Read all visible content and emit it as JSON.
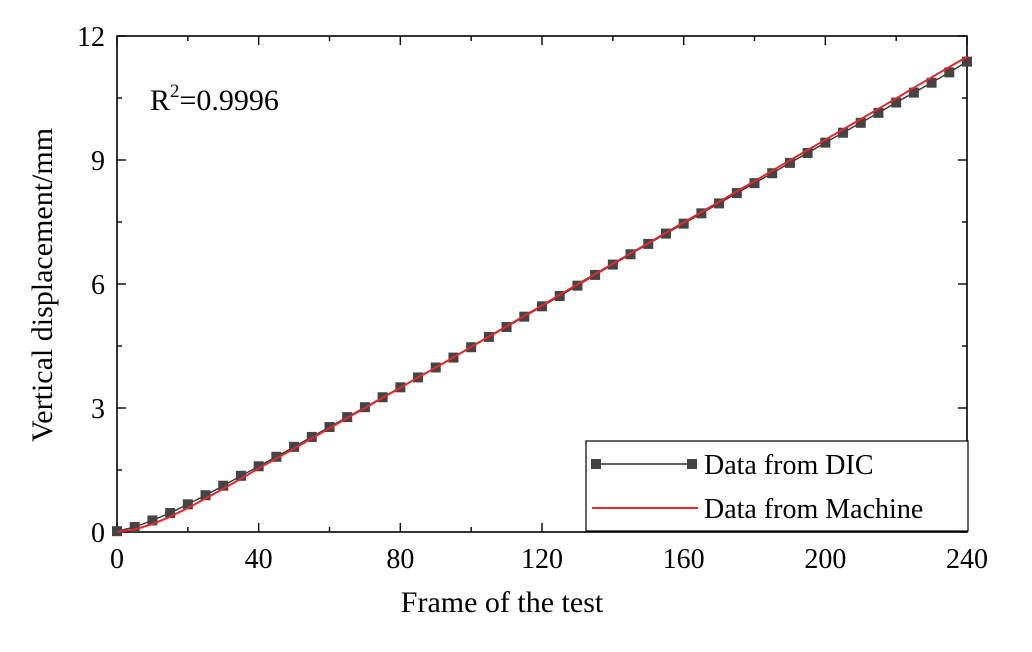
{
  "chart_data": {
    "type": "line",
    "xlabel": "Frame of the test",
    "ylabel": "Vertical displacement/mm",
    "xlim": [
      0,
      240
    ],
    "ylim": [
      0,
      12
    ],
    "xticks": [
      "0",
      "40",
      "80",
      "120",
      "160",
      "200",
      "240"
    ],
    "yticks": [
      "0",
      "3",
      "6",
      "9",
      "12"
    ],
    "grid": false,
    "legend_position": "bottom-right",
    "annotation": {
      "base": "R",
      "sup": "2",
      "rest": "=0.9996"
    },
    "series": [
      {
        "name": "Data from DIC",
        "style": "line-square-markers",
        "color": "#333333",
        "x": [
          0,
          5,
          10,
          15,
          20,
          25,
          30,
          35,
          40,
          45,
          50,
          55,
          60,
          65,
          70,
          75,
          80,
          85,
          90,
          95,
          100,
          105,
          110,
          115,
          120,
          125,
          130,
          135,
          140,
          145,
          150,
          155,
          160,
          165,
          170,
          175,
          180,
          185,
          190,
          195,
          200,
          205,
          210,
          215,
          220,
          225,
          230,
          235,
          240
        ],
        "y": [
          0.02,
          0.12,
          0.28,
          0.46,
          0.67,
          0.89,
          1.12,
          1.36,
          1.59,
          1.82,
          2.06,
          2.3,
          2.54,
          2.78,
          3.02,
          3.26,
          3.5,
          3.74,
          3.98,
          4.22,
          4.47,
          4.72,
          4.96,
          5.21,
          5.46,
          5.71,
          5.96,
          6.22,
          6.47,
          6.72,
          6.97,
          7.22,
          7.46,
          7.71,
          7.95,
          8.2,
          8.44,
          8.68,
          8.93,
          9.17,
          9.42,
          9.66,
          9.9,
          10.14,
          10.39,
          10.63,
          10.87,
          11.12,
          11.38
        ]
      },
      {
        "name": "Data from Machine",
        "style": "line",
        "color": "#e8262b",
        "x": [
          0,
          5,
          10,
          15,
          20,
          25,
          30,
          35,
          40,
          45,
          50,
          55,
          60,
          65,
          70,
          75,
          80,
          85,
          90,
          95,
          100,
          105,
          110,
          115,
          120,
          125,
          130,
          135,
          140,
          145,
          150,
          155,
          160,
          165,
          170,
          175,
          180,
          185,
          190,
          195,
          200,
          205,
          210,
          215,
          220,
          225,
          230,
          235,
          240
        ],
        "y": [
          0.0,
          0.06,
          0.19,
          0.37,
          0.58,
          0.81,
          1.05,
          1.29,
          1.54,
          1.78,
          2.02,
          2.27,
          2.51,
          2.76,
          3.0,
          3.25,
          3.49,
          3.74,
          3.98,
          4.23,
          4.48,
          4.73,
          4.98,
          5.23,
          5.48,
          5.74,
          5.99,
          6.24,
          6.49,
          6.74,
          6.99,
          7.24,
          7.49,
          7.74,
          7.99,
          8.24,
          8.49,
          8.74,
          8.99,
          9.24,
          9.49,
          9.74,
          9.99,
          10.24,
          10.49,
          10.75,
          11.0,
          11.25,
          11.5
        ]
      }
    ]
  }
}
